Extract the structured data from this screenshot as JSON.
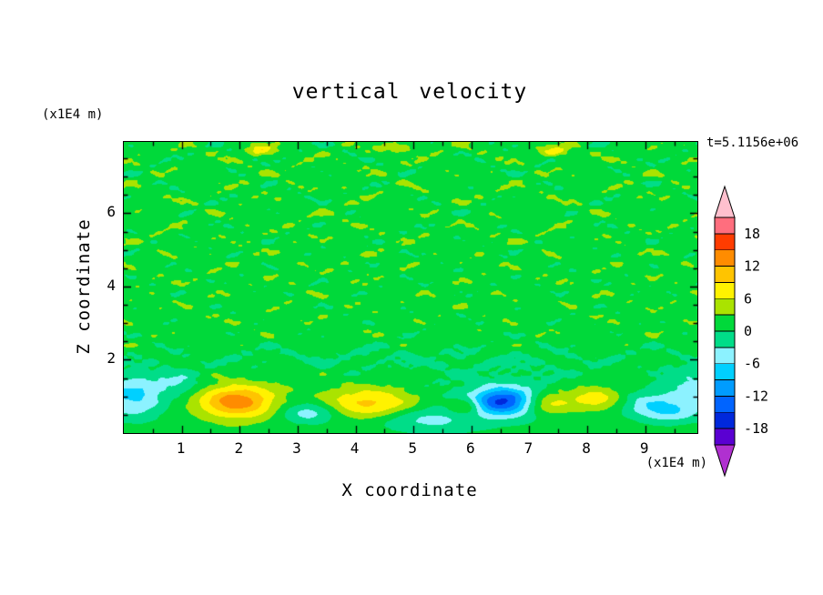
{
  "chart_data": {
    "type": "heatmap",
    "title": "vertical velocity",
    "xlabel": "X coordinate",
    "ylabel": "Z coordinate",
    "x_unit": "(x1E4 m)",
    "y_unit": "(x1E4 m)",
    "time_label": "t=5.1156e+06",
    "xlim": [
      0,
      9.9
    ],
    "ylim": [
      0,
      7.95
    ],
    "xticks": [
      1,
      2,
      3,
      4,
      5,
      6,
      7,
      8,
      9
    ],
    "yticks": [
      2,
      4,
      6
    ],
    "minor_tick_step": 0.5,
    "contour_interval": 3,
    "levels_min": -21,
    "levels_max": 21,
    "grid": false,
    "colorbar": {
      "position": "right",
      "labels": [
        "18",
        "12",
        "6",
        "0",
        "-6",
        "-12",
        "-18"
      ],
      "label_values": [
        18,
        12,
        6,
        0,
        -6,
        -12,
        -18
      ],
      "colors_low_to_high": [
        "#5A00D2",
        "#0028DC",
        "#0064FF",
        "#009CFF",
        "#00D0FF",
        "#8CF2FF",
        "#00DD88",
        "#00D93A",
        "#AAE300",
        "#FFF200",
        "#FFC400",
        "#FF8C00",
        "#FF3C00",
        "#FF6E7E"
      ],
      "arrow_low_color": "#B030D0",
      "arrow_high_color": "#FFC0CE"
    },
    "field_model": {
      "base": 1.6,
      "noise_gain_z": 0.05,
      "noise_ramp": [
        0.4,
        1.8
      ],
      "noise_terms": [
        [
          1.15,
          3.8,
          1.3,
          8.5,
          0.7
        ],
        [
          0.85,
          6.6,
          4.1,
          11.4,
          2.3
        ],
        [
          0.7,
          9.5,
          2.9,
          15.5,
          5.1
        ],
        [
          0.5,
          16.0,
          0.3,
          21.0,
          1.9
        ],
        [
          0.4,
          24.6,
          2.2,
          27.7,
          4.4
        ]
      ],
      "blobs": [
        [
          1.95,
          0.85,
          0.65,
          0.45,
          12.5
        ],
        [
          4.25,
          0.8,
          0.8,
          0.4,
          8.5
        ],
        [
          3.2,
          0.55,
          0.5,
          0.3,
          -6.5
        ],
        [
          6.55,
          0.85,
          0.55,
          0.35,
          -14.5
        ],
        [
          6.55,
          0.9,
          1.3,
          0.7,
          -3.5
        ],
        [
          5.9,
          0.72,
          0.3,
          0.25,
          7.0
        ],
        [
          7.3,
          0.8,
          0.45,
          0.3,
          8.0
        ],
        [
          8.15,
          0.95,
          0.5,
          0.35,
          6.5
        ],
        [
          9.0,
          0.8,
          0.5,
          0.35,
          -5.0
        ],
        [
          9.9,
          1.15,
          0.6,
          0.6,
          -6.5
        ],
        [
          0.15,
          1.0,
          0.55,
          0.6,
          -8.5
        ],
        [
          0.95,
          1.35,
          0.4,
          0.3,
          -4.5
        ],
        [
          5.2,
          0.35,
          0.9,
          0.35,
          -5.0
        ],
        [
          9.4,
          0.55,
          0.5,
          0.3,
          -5.5
        ],
        [
          5.0,
          2.0,
          5.5,
          0.45,
          -1.6
        ],
        [
          2.35,
          7.75,
          0.22,
          0.15,
          6.0
        ],
        [
          7.45,
          7.7,
          0.25,
          0.15,
          5.5
        ],
        [
          4.75,
          7.8,
          0.3,
          0.12,
          4.5
        ]
      ]
    }
  }
}
